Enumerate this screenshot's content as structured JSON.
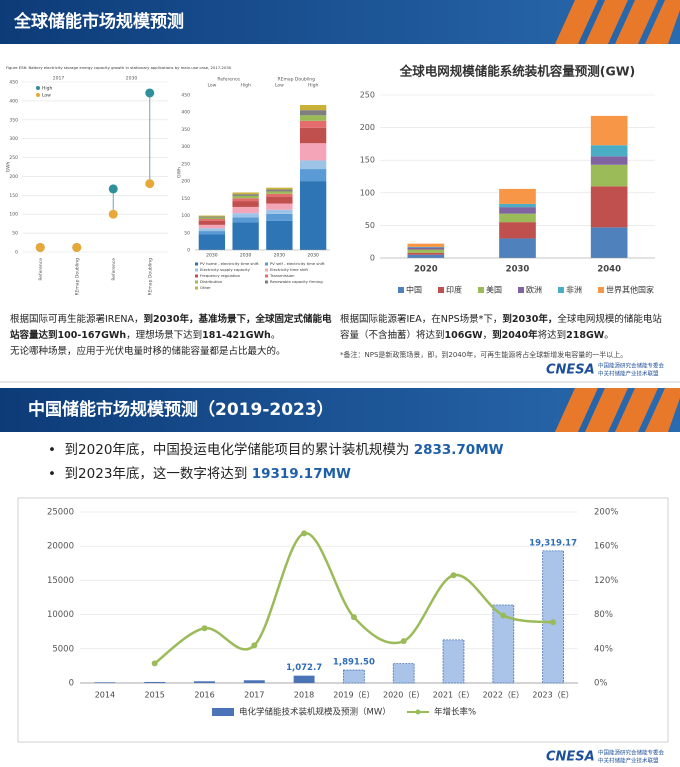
{
  "slide1": {
    "title": "全球储能市场规模预测",
    "left_paragraphs": [
      {
        "runs": [
          {
            "text": "根据国际可再生能源署IRENA，",
            "bold": false
          },
          {
            "text": "到2030年，基准场景下，全球固定式储能电站容量达到100-167GWh",
            "bold": true
          },
          {
            "text": "，理想场景下达到",
            "bold": false
          },
          {
            "text": "181-421GWh",
            "bold": true
          },
          {
            "text": "。",
            "bold": false
          }
        ]
      },
      {
        "runs": [
          {
            "text": "无论哪种场景，应用于光伏电量时移的储能容量都是占比最大的。",
            "bold": false
          }
        ]
      }
    ],
    "right_paragraphs": [
      {
        "runs": [
          {
            "text": "根据国际能源署IEA，在NPS场景*下，",
            "bold": false
          },
          {
            "text": "到2030年，",
            "bold": true
          },
          {
            "text": "全球电网规模的储能电站容量（不含抽蓄）将达到",
            "bold": false
          },
          {
            "text": "106GW",
            "bold": true
          },
          {
            "text": "，",
            "bold": false
          },
          {
            "text": "到2040年",
            "bold": true
          },
          {
            "text": "将达到",
            "bold": false
          },
          {
            "text": "218GW",
            "bold": true
          },
          {
            "text": "。",
            "bold": false
          }
        ]
      }
    ],
    "note": "*备注：NPS是新政策场景，即，到2040年，可再生能源将占全球新增发电容量的一半以上。",
    "logo": {
      "name": "CNESA",
      "line1": "中国能源研究会储能专委会",
      "line2": "中关村储能产业技术联盟"
    }
  },
  "slide2": {
    "title": "中国储能市场规模预测（2019-2023）",
    "bullets": [
      {
        "text": "到2020年底，中国投运电化学储能项目的累计装机规模为",
        "highlight": "2833.70MW"
      },
      {
        "text": "到2023年底，这一数字将达到",
        "highlight": "19319.17MW"
      }
    ],
    "logo": {
      "name": "CNESA",
      "line1": "中国能源研究会储能专委会",
      "line2": "中关村储能产业技术联盟"
    }
  },
  "chart_data": [
    {
      "type": "lollipop",
      "title": "Figure ES6: Battery electricity storage energy capacity growth in stationary applications by main-use case, 2017-2030",
      "y_label": "GWh",
      "groups": [
        "2017",
        "2030"
      ],
      "categories": [
        "Reference",
        "REmap Doubling",
        "Reference",
        "REmap Doubling"
      ],
      "series": [
        {
          "name": "High",
          "color": "#2f8f9d",
          "values": [
            12,
            12,
            167,
            421
          ]
        },
        {
          "name": "Low",
          "color": "#e8a838",
          "values": [
            12,
            12,
            100,
            181
          ]
        }
      ],
      "ylim": [
        0,
        450
      ],
      "yticks": [
        0,
        50,
        100,
        150,
        200,
        250,
        300,
        350,
        400,
        450
      ]
    },
    {
      "type": "stacked_bar",
      "y_label": "GWh",
      "groups": [
        "Reference",
        "REmap Doubling"
      ],
      "subgroups": [
        "Low",
        "High",
        "Low",
        "High"
      ],
      "categories": [
        "2030",
        "2030",
        "2030",
        "2030"
      ],
      "series": [
        {
          "name": "PV home - electricity time shift",
          "color": "#2e75b6",
          "values": [
            45,
            80,
            85,
            200
          ]
        },
        {
          "name": "PV self - electricity time shift",
          "color": "#5b9bd5",
          "values": [
            10,
            15,
            20,
            35
          ]
        },
        {
          "name": "Electricity supply capacity",
          "color": "#9dc3e6",
          "values": [
            8,
            12,
            12,
            25
          ]
        },
        {
          "name": "Electricity time shift",
          "color": "#f4a6b8",
          "values": [
            10,
            18,
            18,
            50
          ]
        },
        {
          "name": "Frequency regulation",
          "color": "#c0504d",
          "values": [
            12,
            17,
            20,
            45
          ]
        },
        {
          "name": "Transmission",
          "color": "#e46c6c",
          "values": [
            5,
            8,
            8,
            20
          ]
        },
        {
          "name": "Distribution",
          "color": "#9bbb59",
          "values": [
            4,
            7,
            7,
            16
          ]
        },
        {
          "name": "Renewable capacity firming",
          "color": "#7f7f7f",
          "values": [
            3,
            5,
            6,
            15
          ]
        },
        {
          "name": "Other",
          "color": "#c9b037",
          "values": [
            3,
            5,
            5,
            15
          ]
        }
      ],
      "ylim": [
        0,
        450
      ],
      "yticks": [
        0,
        50,
        100,
        150,
        200,
        250,
        300,
        350,
        400,
        450
      ]
    },
    {
      "type": "stacked_bar",
      "title": "全球电网规模储能系统装机容量预测(GW)",
      "categories": [
        "2020",
        "2030",
        "2040"
      ],
      "series": [
        {
          "name": "中国",
          "color": "#4f81bd",
          "values": [
            5,
            30,
            47
          ]
        },
        {
          "name": "印度",
          "color": "#c0504d",
          "values": [
            3,
            25,
            63
          ]
        },
        {
          "name": "美国",
          "color": "#9bbb59",
          "values": [
            5,
            13,
            33
          ]
        },
        {
          "name": "欧洲",
          "color": "#8064a2",
          "values": [
            3,
            10,
            13
          ]
        },
        {
          "name": "非洲",
          "color": "#4bacc6",
          "values": [
            1,
            5,
            17
          ]
        },
        {
          "name": "世界其他国家",
          "color": "#f79646",
          "values": [
            5,
            23,
            45
          ]
        }
      ],
      "ylim": [
        0,
        250
      ],
      "yticks": [
        0,
        50,
        100,
        150,
        200,
        250
      ],
      "grid": true
    },
    {
      "type": "bar_line",
      "categories": [
        "2014",
        "2015",
        "2016",
        "2017",
        "2018",
        "2019（E）",
        "2020（E）",
        "2021（E）",
        "2022（E）",
        "2023（E）"
      ],
      "series": [
        {
          "name": "电化学储能技术装机规模及预测（MW）",
          "color": "#4a74b5",
          "colors": [
            "#4a74b5",
            "#4a74b5",
            "#4a74b5",
            "#4a74b5",
            "#4a74b5",
            "#a9c4e8",
            "#a9c4e8",
            "#a9c4e8",
            "#a9c4e8",
            "#a9c4e8"
          ],
          "values": [
            100,
            150,
            250,
            400,
            1072.7,
            1891.5,
            2833.7,
            6300,
            11400,
            19319.17
          ],
          "value_labels": [
            null,
            null,
            null,
            null,
            "1,072.7",
            "1,891.50",
            null,
            null,
            null,
            "19,319.17"
          ]
        },
        {
          "name": "年增长率%",
          "color": "#9bbb59",
          "axis": "y2",
          "values": [
            null,
            23,
            64,
            44,
            175,
            77,
            49,
            126,
            79,
            71
          ]
        }
      ],
      "ylim": [
        0,
        25000
      ],
      "yticks": [
        0,
        5000,
        10000,
        15000,
        20000,
        25000
      ],
      "y2lim": [
        0,
        200
      ],
      "y2ticks": [
        {
          "value": 0,
          "label": "0%"
        },
        {
          "value": 40,
          "label": "40%"
        },
        {
          "value": 80,
          "label": "80%"
        },
        {
          "value": 120,
          "label": "120%"
        },
        {
          "value": 160,
          "label": "160%"
        },
        {
          "value": 200,
          "label": "200%"
        }
      ]
    }
  ]
}
